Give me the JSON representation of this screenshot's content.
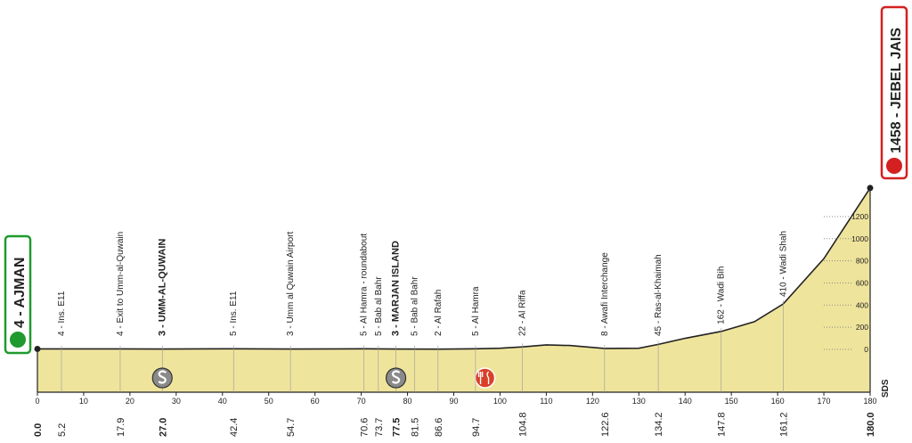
{
  "chart_data": {
    "type": "area",
    "x": [
      0,
      5.2,
      17.9,
      27,
      42.4,
      54.7,
      70.6,
      77.5,
      86.6,
      94.7,
      100,
      104.8,
      110,
      115,
      122.6,
      130,
      134.2,
      140,
      147.8,
      155,
      161.2,
      170,
      180
    ],
    "series": [
      {
        "color": "#efe49c",
        "values": [
          4,
          4,
          4,
          3,
          5,
          3,
          5,
          3,
          2,
          5,
          10,
          22,
          40,
          35,
          8,
          10,
          45,
          100,
          162,
          250,
          410,
          820,
          1458
        ]
      }
    ],
    "xlim": [
      0,
      180
    ],
    "xticks": [
      0,
      10,
      20,
      30,
      40,
      50,
      60,
      70,
      80,
      90,
      100,
      110,
      120,
      130,
      140,
      150,
      160,
      170,
      180
    ],
    "ylim": [
      -387,
      1500
    ],
    "yticks": [
      0,
      200,
      400,
      600,
      800,
      1000,
      1200
    ],
    "feed_zone_km": [
      95,
      98.5
    ],
    "logo": "SDS",
    "waypoints": [
      {
        "km": {
          "value": 0,
          "label": "0.0"
        },
        "label": "4 - AJMAN"
      },
      {
        "km": 5.2,
        "label": "4 - Ins. E11"
      },
      {
        "km": 17.9,
        "label": "4 - Exit to Umm-al-Quwain"
      },
      {
        "km": {
          "value": 27,
          "label": "27.0"
        },
        "label": "3 - UMM-AL-QUWAIN",
        "sprint": true
      },
      {
        "km": 42.4,
        "label": "5 - Ins. E11"
      },
      {
        "km": 54.7,
        "label": "3 - Umm al Quwain Airport"
      },
      {
        "km": 70.6,
        "label": "5 - Al Hamra - roundabout"
      },
      {
        "km": 73.7,
        "label": "5 - Bab al Bahr"
      },
      {
        "km": 77.5,
        "label": "3 - MARJAN ISLAND",
        "sprint": true
      },
      {
        "km": 81.5,
        "label": "5 - Bab al Bahr"
      },
      {
        "km": 86.6,
        "label": "2 - Al Rafah"
      },
      {
        "km": 94.7,
        "label": "5 - Al Hamra"
      },
      {
        "km": 104.8,
        "label": "22 - Al Riffa"
      },
      {
        "km": 122.6,
        "label": "8 - Awafi Interchange"
      },
      {
        "km": 134.2,
        "label": "45 - Ras-al-Khaimah"
      },
      {
        "km": 147.8,
        "label": "162 - Wadi Bih"
      },
      {
        "km": 161.2,
        "label": "410 - Wadi Shah"
      },
      {
        "km": {
          "value": 180,
          "label": "180.0"
        },
        "label": "1458 - JEBEL JAIS"
      }
    ]
  }
}
